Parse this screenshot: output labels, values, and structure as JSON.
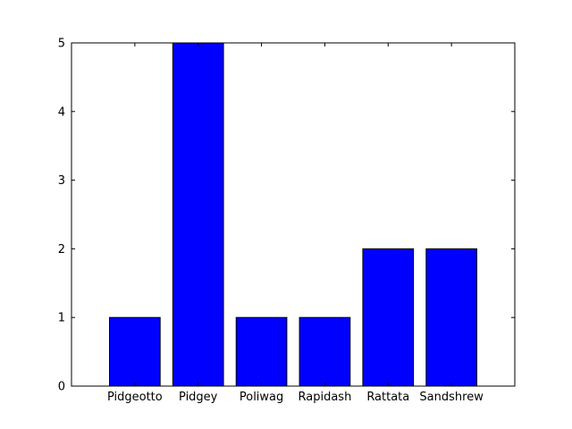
{
  "chart_data": {
    "type": "bar",
    "categories": [
      "Pidgeotto",
      "Pidgey",
      "Poliwag",
      "Rapidash",
      "Rattata",
      "Sandshrew"
    ],
    "values": [
      1,
      5,
      1,
      1,
      2,
      2
    ],
    "title": "",
    "xlabel": "",
    "ylabel": "",
    "ylim": [
      0,
      5
    ],
    "yticks": [
      "0",
      "1",
      "2",
      "3",
      "4",
      "5"
    ],
    "grid": false,
    "bar_color": "#0000ff",
    "edge_color": "#000000"
  }
}
